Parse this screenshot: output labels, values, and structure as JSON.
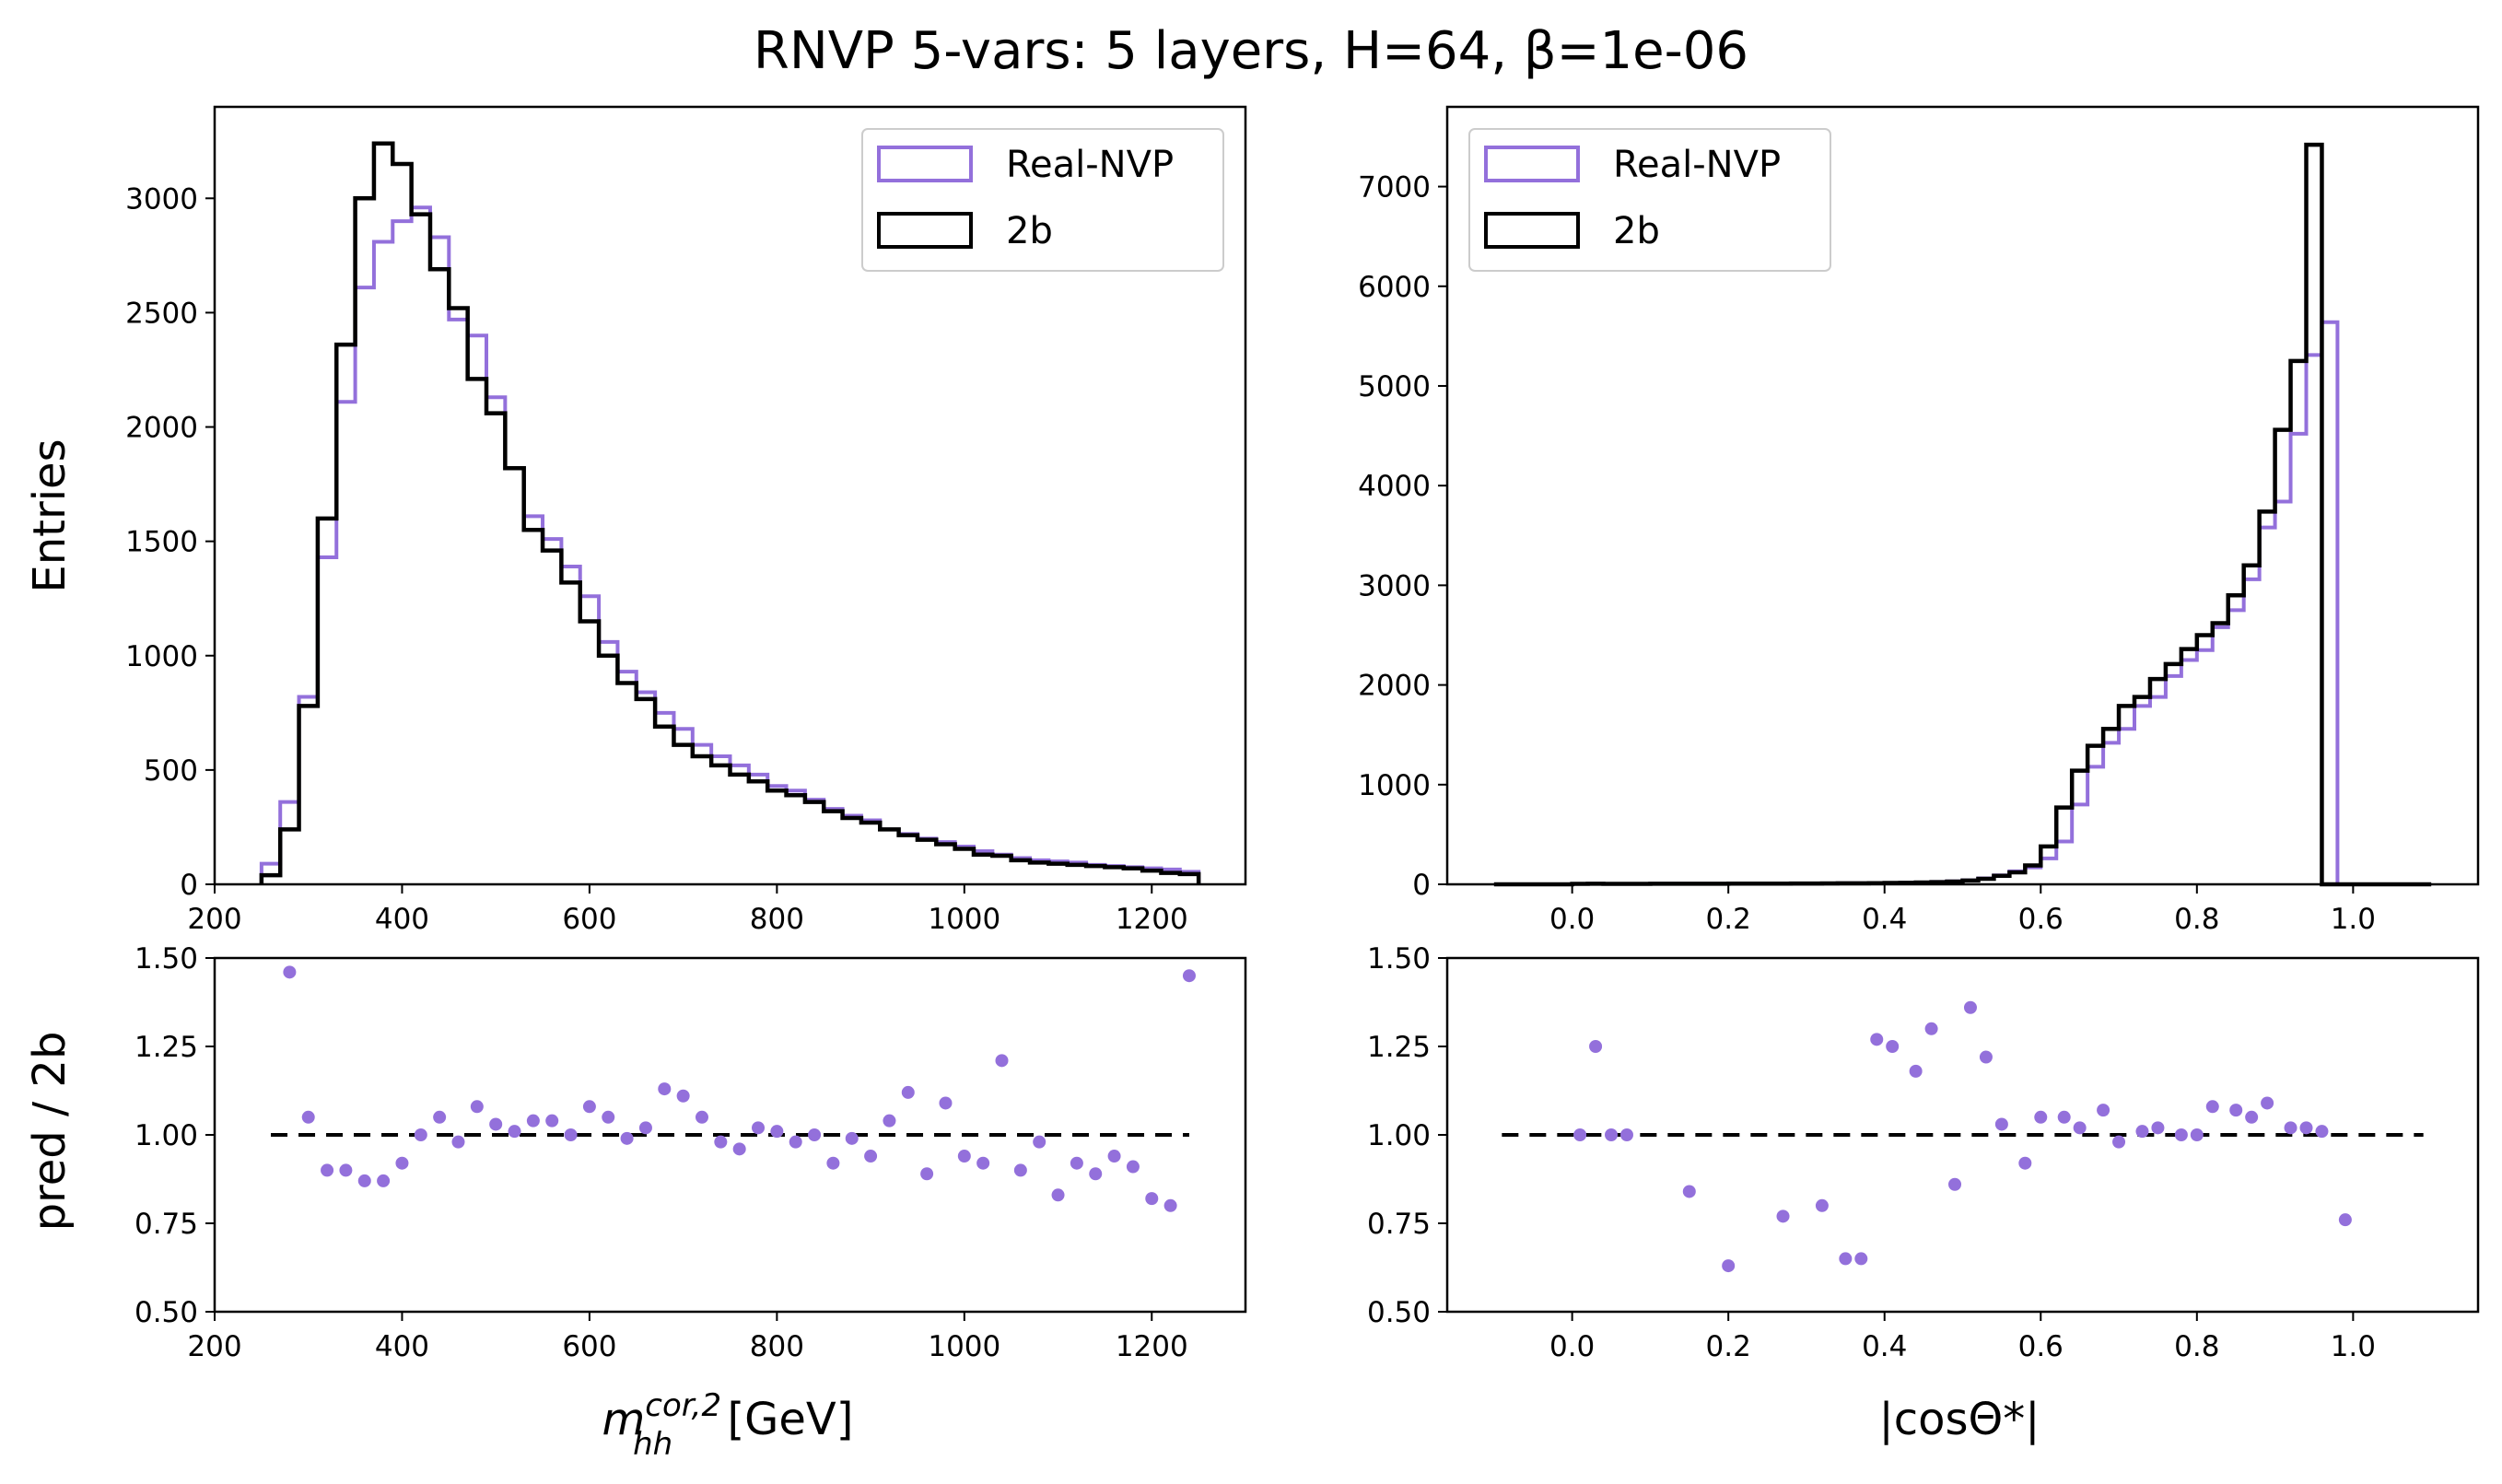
{
  "figure": {
    "title": "RNVP 5-vars: 5 layers, H=64, β=1e-06",
    "ylabel_top": "Entries",
    "ylabel_bottom": "pred / 2b"
  },
  "colors": {
    "pred": "#9370DB",
    "ref": "#000000",
    "ratio_line": "#000000"
  },
  "chart_data": [
    {
      "id": "mhh-hist",
      "type": "line",
      "subtype": "step-histogram",
      "title": "",
      "xlabel": "",
      "ylabel": "Entries",
      "xlim": [
        200,
        1300
      ],
      "ylim": [
        0,
        3400
      ],
      "xticks": [
        200,
        400,
        600,
        800,
        1000,
        1200
      ],
      "yticks": [
        0,
        500,
        1000,
        1500,
        2000,
        2500,
        3000
      ],
      "legend": {
        "position": "top-right",
        "entries": [
          "Real-NVP",
          "2b"
        ]
      },
      "bin_edges": [
        250,
        270,
        290,
        310,
        330,
        350,
        370,
        390,
        410,
        430,
        450,
        470,
        490,
        510,
        530,
        550,
        570,
        590,
        610,
        630,
        650,
        670,
        690,
        710,
        730,
        750,
        770,
        790,
        810,
        830,
        850,
        870,
        890,
        910,
        930,
        950,
        970,
        990,
        1010,
        1030,
        1050,
        1070,
        1090,
        1110,
        1130,
        1150,
        1170,
        1190,
        1210,
        1230,
        1250
      ],
      "series": [
        {
          "name": "Real-NVP",
          "color": "#9370DB",
          "values": [
            90,
            360,
            820,
            1430,
            2110,
            2610,
            2810,
            2900,
            2960,
            2830,
            2470,
            2400,
            2130,
            1820,
            1610,
            1510,
            1390,
            1260,
            1060,
            930,
            840,
            750,
            680,
            610,
            560,
            520,
            480,
            430,
            410,
            370,
            330,
            300,
            280,
            240,
            220,
            200,
            185,
            165,
            145,
            130,
            115,
            105,
            100,
            95,
            85,
            80,
            75,
            70,
            65,
            55
          ]
        },
        {
          "name": "2b",
          "color": "#000000",
          "values": [
            40,
            240,
            780,
            1600,
            2360,
            3000,
            3240,
            3150,
            2930,
            2690,
            2520,
            2210,
            2060,
            1820,
            1550,
            1460,
            1320,
            1150,
            1000,
            880,
            810,
            690,
            610,
            560,
            520,
            480,
            450,
            410,
            390,
            360,
            320,
            290,
            270,
            240,
            215,
            195,
            175,
            155,
            130,
            125,
            105,
            95,
            90,
            85,
            80,
            75,
            70,
            60,
            50,
            45
          ]
        }
      ]
    },
    {
      "id": "costheta-hist",
      "type": "line",
      "subtype": "step-histogram",
      "title": "",
      "xlabel": "",
      "ylabel": "",
      "xlim": [
        -0.16,
        1.16
      ],
      "ylim": [
        0,
        7800
      ],
      "xticks": [
        0.0,
        0.2,
        0.4,
        0.6,
        0.8,
        1.0
      ],
      "xtick_labels": [
        "0.0",
        "0.2",
        "0.4",
        "0.6",
        "0.8",
        "1.0"
      ],
      "yticks": [
        0,
        1000,
        2000,
        3000,
        4000,
        5000,
        6000,
        7000
      ],
      "legend": {
        "position": "top-left",
        "entries": [
          "Real-NVP",
          "2b"
        ]
      },
      "bin_edges": [
        -0.1,
        -0.08,
        -0.06,
        -0.04,
        -0.02,
        0.0,
        0.02,
        0.04,
        0.06,
        0.08,
        0.1,
        0.12,
        0.14,
        0.16,
        0.18,
        0.2,
        0.22,
        0.24,
        0.26,
        0.28,
        0.3,
        0.32,
        0.34,
        0.36,
        0.38,
        0.4,
        0.42,
        0.44,
        0.46,
        0.48,
        0.5,
        0.52,
        0.54,
        0.56,
        0.58,
        0.6,
        0.62,
        0.64,
        0.66,
        0.68,
        0.7,
        0.72,
        0.74,
        0.76,
        0.78,
        0.8,
        0.82,
        0.84,
        0.86,
        0.88,
        0.9,
        0.92,
        0.94,
        0.96,
        0.98,
        1.0,
        1.02,
        1.04,
        1.06,
        1.08,
        1.1
      ],
      "series": [
        {
          "name": "Real-NVP",
          "color": "#9370DB",
          "values": [
            0,
            0,
            0,
            0,
            0,
            5,
            6,
            5,
            5,
            5,
            6,
            6,
            6,
            6,
            6,
            7,
            7,
            7,
            7,
            8,
            8,
            9,
            10,
            10,
            12,
            14,
            15,
            18,
            24,
            30,
            40,
            60,
            90,
            130,
            170,
            260,
            430,
            800,
            1180,
            1420,
            1560,
            1790,
            1880,
            2090,
            2250,
            2350,
            2580,
            2750,
            3060,
            3580,
            3840,
            4520,
            5310,
            5640,
            0,
            0,
            0,
            0,
            0,
            0
          ]
        },
        {
          "name": "2b",
          "color": "#000000",
          "values": [
            0,
            0,
            0,
            0,
            0,
            5,
            6,
            5,
            5,
            5,
            6,
            6,
            6,
            6,
            6,
            7,
            7,
            7,
            7,
            8,
            8,
            9,
            10,
            10,
            12,
            14,
            15,
            18,
            22,
            28,
            38,
            55,
            85,
            120,
            190,
            380,
            770,
            1140,
            1390,
            1560,
            1790,
            1880,
            2060,
            2210,
            2360,
            2500,
            2620,
            2900,
            3200,
            3740,
            4560,
            5250,
            7420,
            0,
            0,
            0,
            0,
            0,
            0,
            0
          ]
        }
      ]
    },
    {
      "id": "mhh-ratio",
      "type": "scatter",
      "title": "",
      "xlabel": "m_hh^{cor,2} [GeV]",
      "ylabel": "pred / 2b",
      "xlim": [
        200,
        1300
      ],
      "ylim": [
        0.5,
        1.5
      ],
      "xticks": [
        200,
        400,
        600,
        800,
        1000,
        1200
      ],
      "yticks": [
        0.5,
        0.75,
        1.0,
        1.25,
        1.5
      ],
      "ytick_labels": [
        "0.50",
        "0.75",
        "1.00",
        "1.25",
        "1.50"
      ],
      "reference_line": {
        "y": 1.0,
        "x": [
          260,
          1240
        ],
        "style": "dashed"
      },
      "x": [
        280,
        300,
        320,
        340,
        360,
        380,
        400,
        420,
        440,
        460,
        480,
        500,
        520,
        540,
        560,
        580,
        600,
        620,
        640,
        660,
        680,
        700,
        720,
        740,
        760,
        780,
        800,
        820,
        840,
        860,
        880,
        900,
        920,
        940,
        960,
        980,
        1000,
        1020,
        1040,
        1060,
        1080,
        1100,
        1120,
        1140,
        1160,
        1180,
        1200,
        1220,
        1240
      ],
      "series": [
        {
          "name": "Real-NVP",
          "color": "#9370DB",
          "values": [
            1.46,
            1.05,
            0.9,
            0.9,
            0.87,
            0.87,
            0.92,
            1.0,
            1.05,
            0.98,
            1.08,
            1.03,
            1.01,
            1.04,
            1.04,
            1.0,
            1.08,
            1.05,
            0.99,
            1.02,
            1.13,
            1.11,
            1.05,
            0.98,
            0.96,
            1.02,
            1.01,
            0.98,
            1.0,
            0.92,
            0.99,
            0.94,
            1.04,
            1.12,
            0.89,
            1.09,
            0.94,
            0.92,
            1.21,
            0.9,
            0.98,
            0.83,
            0.92,
            0.89,
            0.94,
            0.91,
            0.82,
            0.8,
            1.45
          ]
        }
      ]
    },
    {
      "id": "costheta-ratio",
      "type": "scatter",
      "title": "",
      "xlabel": "|cosΘ*|",
      "ylabel": "",
      "xlim": [
        -0.16,
        1.16
      ],
      "ylim": [
        0.5,
        1.5
      ],
      "xticks": [
        0.0,
        0.2,
        0.4,
        0.6,
        0.8,
        1.0
      ],
      "xtick_labels": [
        "0.0",
        "0.2",
        "0.4",
        "0.6",
        "0.8",
        "1.0"
      ],
      "yticks": [
        0.5,
        0.75,
        1.0,
        1.25,
        1.5
      ],
      "ytick_labels": [
        "0.50",
        "0.75",
        "1.00",
        "1.25",
        "1.50"
      ],
      "reference_line": {
        "y": 1.0,
        "x": [
          -0.09,
          1.09
        ],
        "style": "dashed"
      },
      "x": [
        0.01,
        0.03,
        0.05,
        0.07,
        0.15,
        0.2,
        0.27,
        0.32,
        0.35,
        0.37,
        0.39,
        0.41,
        0.44,
        0.46,
        0.49,
        0.51,
        0.53,
        0.55,
        0.58,
        0.6,
        0.63,
        0.65,
        0.68,
        0.7,
        0.73,
        0.75,
        0.78,
        0.8,
        0.82,
        0.85,
        0.87,
        0.89,
        0.92,
        0.94,
        0.96,
        0.99
      ],
      "series": [
        {
          "name": "Real-NVP",
          "color": "#9370DB",
          "values": [
            1.0,
            1.25,
            1.0,
            1.0,
            0.84,
            0.63,
            0.77,
            0.8,
            0.65,
            0.65,
            1.27,
            1.25,
            1.18,
            1.3,
            0.86,
            1.36,
            1.22,
            1.03,
            0.92,
            1.05,
            1.05,
            1.02,
            1.07,
            0.98,
            1.01,
            1.02,
            1.0,
            1.0,
            1.08,
            1.07,
            1.05,
            1.09,
            1.02,
            1.02,
            1.01,
            0.76
          ]
        }
      ]
    }
  ]
}
